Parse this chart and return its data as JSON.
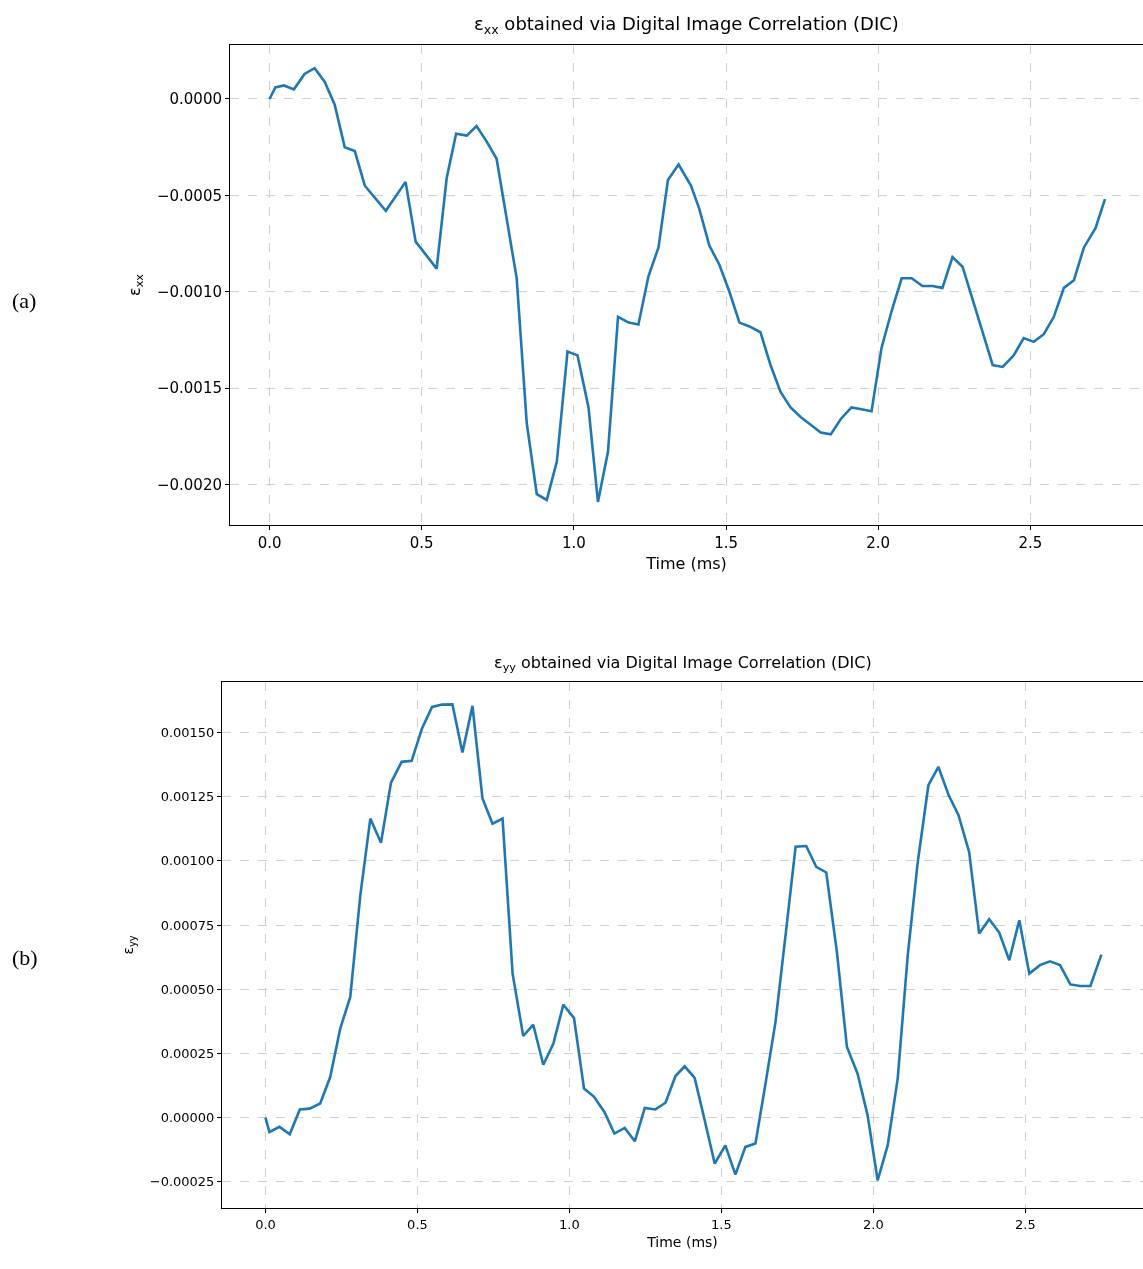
{
  "chart_data": [
    {
      "type": "line",
      "title": "ε$_{xx}$ obtained via Digital Image Correlation (DIC)",
      "xlabel": "Time (ms)",
      "ylabel": "ε$_{xx}$",
      "annotations": [
        "(a)"
      ],
      "x": [
        0,
        0.019,
        0.047,
        0.08,
        0.115,
        0.148,
        0.181,
        0.214,
        0.247,
        0.28,
        0.313,
        0.382,
        0.447,
        0.48,
        0.549,
        0.582,
        0.613,
        0.648,
        0.68,
        0.713,
        0.746,
        0.779,
        0.812,
        0.845,
        0.878,
        0.911,
        0.944,
        0.979,
        1.012,
        1.048,
        1.079,
        1.112,
        1.145,
        1.18,
        1.212,
        1.245,
        1.278,
        1.309,
        1.344,
        1.385,
        1.412,
        1.445,
        1.478,
        1.511,
        1.544,
        1.577,
        1.613,
        1.646,
        1.679,
        1.712,
        1.745,
        1.778,
        1.811,
        1.844,
        1.877,
        1.912,
        1.945,
        1.978,
        2.011,
        2.044,
        2.077,
        2.11,
        2.145,
        2.178,
        2.211,
        2.244,
        2.277,
        2.31,
        2.343,
        2.376,
        2.409,
        2.445,
        2.478,
        2.511,
        2.544,
        2.577,
        2.61,
        2.643,
        2.676,
        2.714,
        2.745
      ],
      "series": [
        {
          "color": "#1f77b4",
          "values": [
            0,
            6e-05,
            7e-05,
            5e-05,
            0.00013,
            0.00016,
            9e-05,
            -3e-05,
            -0.00025,
            -0.00027,
            -0.00045,
            -0.00058,
            -0.00043,
            -0.00074,
            -0.00088,
            -0.00041,
            -0.00018,
            -0.00019,
            -0.00014,
            -0.00022,
            -0.00031,
            -0.00062,
            -0.00093,
            -0.00168,
            -0.00205,
            -0.00208,
            -0.00188,
            -0.00131,
            -0.00133,
            -0.0016,
            -0.00209,
            -0.00183,
            -0.00113,
            -0.00116,
            -0.00117,
            -0.00092,
            -0.00077,
            -0.00042,
            -0.00034,
            -0.00045,
            -0.00057,
            -0.00076,
            -0.00086,
            -0.001,
            -0.00116,
            -0.00118,
            -0.00121,
            -0.00138,
            -0.00152,
            -0.0016,
            -0.00165,
            -0.00169,
            -0.00173,
            -0.00174,
            -0.00166,
            -0.0016,
            -0.00161,
            -0.00162,
            -0.00129,
            -0.0011,
            -0.00093,
            -0.00093,
            -0.00097,
            -0.00097,
            -0.00098,
            -0.00082,
            -0.00087,
            -0.00104,
            -0.00121,
            -0.00138,
            -0.00139,
            -0.00133,
            -0.00124,
            -0.00126,
            -0.00122,
            -0.00113,
            -0.00098,
            -0.00094,
            -0.00077,
            -0.00067,
            -0.00052
          ]
        }
      ],
      "xlim": [
        -0.13,
        2.87
      ],
      "ylim": [
        -0.00221,
        0.00028
      ],
      "xticks": [
        {
          "value": 0,
          "label": "0.0"
        },
        {
          "value": 0.5,
          "label": "0.5"
        },
        {
          "value": 1,
          "label": "1.0"
        },
        {
          "value": 1.5,
          "label": "1.5"
        },
        {
          "value": 2,
          "label": "2.0"
        },
        {
          "value": 2.5,
          "label": "2.5"
        }
      ],
      "yticks": [
        {
          "value": -0.002,
          "label": "−0.0020"
        },
        {
          "value": -0.0015,
          "label": "−0.0015"
        },
        {
          "value": -0.001,
          "label": "−0.0010"
        },
        {
          "value": -0.0005,
          "label": "−0.0005"
        },
        {
          "value": 0,
          "label": "0.0000"
        }
      ],
      "grid": true,
      "line_style": "solid"
    },
    {
      "type": "line",
      "title": "ε$_{yy}$ obtained via Digital Image Correlation (DIC)",
      "xlabel": "Time (ms)",
      "ylabel": "ε$_{yy}$",
      "annotations": [
        "(b)"
      ],
      "x": [
        0,
        0.013,
        0.046,
        0.08,
        0.113,
        0.145,
        0.18,
        0.213,
        0.246,
        0.279,
        0.312,
        0.345,
        0.38,
        0.413,
        0.448,
        0.481,
        0.515,
        0.548,
        0.581,
        0.615,
        0.648,
        0.681,
        0.714,
        0.747,
        0.78,
        0.813,
        0.848,
        0.881,
        0.914,
        0.947,
        0.98,
        1.015,
        1.048,
        1.081,
        1.115,
        1.148,
        1.182,
        1.215,
        1.248,
        1.283,
        1.316,
        1.349,
        1.379,
        1.412,
        1.445,
        1.478,
        1.513,
        1.546,
        1.579,
        1.612,
        1.645,
        1.678,
        1.711,
        1.744,
        1.779,
        1.812,
        1.845,
        1.88,
        1.913,
        1.948,
        1.981,
        2.014,
        2.047,
        2.08,
        2.113,
        2.146,
        2.181,
        2.214,
        2.247,
        2.28,
        2.315,
        2.348,
        2.381,
        2.414,
        2.447,
        2.48,
        2.513,
        2.548,
        2.581,
        2.614,
        2.648,
        2.681,
        2.714,
        2.75
      ],
      "series": [
        {
          "color": "#1f77b4",
          "values": [
            0,
            -5.6e-05,
            -3.6e-05,
            -6.5e-05,
            3.2e-05,
            3.5e-05,
            5.5e-05,
            0.000158,
            0.000347,
            0.00047,
            0.000866,
            0.001165,
            0.001071,
            0.001305,
            0.001386,
            0.00139,
            0.001516,
            0.0016,
            0.001609,
            0.00161,
            0.001422,
            0.001604,
            0.001243,
            0.001145,
            0.001165,
            0.000561,
            0.000318,
            0.000362,
            0.000206,
            0.000288,
            0.00044,
            0.000388,
            0.000113,
            8.1e-05,
            2.2e-05,
            -6.2e-05,
            -4e-05,
            -9.2e-05,
            3.8e-05,
            3.2e-05,
            5.8e-05,
            0.000162,
            0.0002,
            0.000155,
            -1e-05,
            -0.000179,
            -0.000108,
            -0.000222,
            -0.000114,
            -0.000101,
            0.000132,
            0.000373,
            0.00071,
            0.001055,
            0.001058,
            0.000977,
            0.000955,
            0.000645,
            0.000275,
            0.000171,
            9e-06,
            -0.000244,
            -0.000108,
            0.000152,
            0.000632,
            0.000996,
            0.001295,
            0.001366,
            0.001258,
            0.001178,
            0.001035,
            0.000717,
            0.000773,
            0.000721,
            0.000613,
            0.000769,
            0.000561,
            0.000594,
            0.000609,
            0.000594,
            0.000519,
            0.000513,
            0.000513,
            0.000635
          ]
        }
      ],
      "xlim": [
        -0.143,
        2.887
      ],
      "ylim": [
        -0.000352,
        0.001697
      ],
      "xticks": [
        {
          "value": 0,
          "label": "0.0"
        },
        {
          "value": 0.5,
          "label": "0.5"
        },
        {
          "value": 1,
          "label": "1.0"
        },
        {
          "value": 1.5,
          "label": "1.5"
        },
        {
          "value": 2,
          "label": "2.0"
        },
        {
          "value": 2.5,
          "label": "2.5"
        }
      ],
      "yticks": [
        {
          "value": -0.00025,
          "label": "−0.00025"
        },
        {
          "value": 0,
          "label": "0.00000"
        },
        {
          "value": 0.00025,
          "label": "0.00025"
        },
        {
          "value": 0.0005,
          "label": "0.00050"
        },
        {
          "value": 0.00075,
          "label": "0.00075"
        },
        {
          "value": 0.001,
          "label": "0.00100"
        },
        {
          "value": 0.00125,
          "label": "0.00125"
        },
        {
          "value": 0.0015,
          "label": "0.00150"
        }
      ],
      "grid": true,
      "line_style": "solid"
    }
  ]
}
